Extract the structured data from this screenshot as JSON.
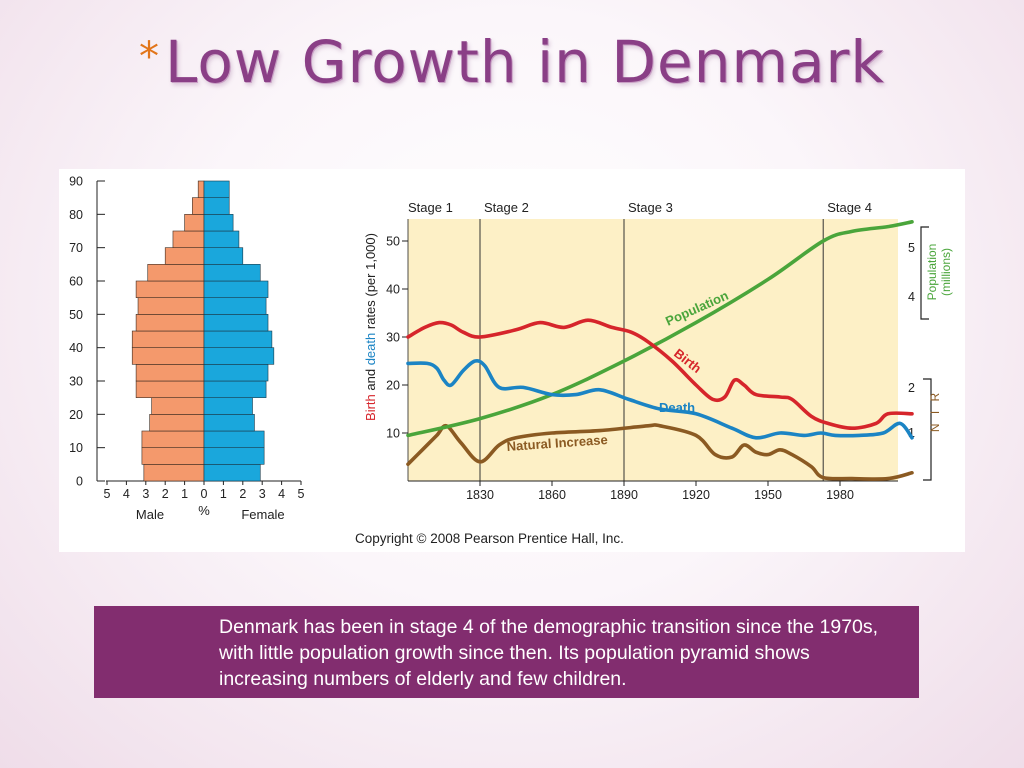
{
  "slide": {
    "title_prefix": "*",
    "title": "Low Growth in Denmark",
    "caption": "Denmark has been in stage 4 of the demographic transition since the 1970s, with little population growth since then.  Its population pyramid shows increasing numbers of elderly and few children."
  },
  "colors": {
    "male": "#f4996c",
    "female": "#1aa7dc",
    "birth": "#d6252b",
    "death": "#1b84c4",
    "population": "#4aa53b",
    "natural_increase": "#8b5a22",
    "plot_bg": "#fdf0c6",
    "caption_bg": "#822d6f",
    "title": "#8a3f86"
  },
  "chart_data": [
    {
      "type": "bar",
      "subtype": "population-pyramid",
      "xlabel": "%",
      "x_ticks": [
        "5",
        "4",
        "3",
        "2",
        "1",
        "0",
        "1",
        "2",
        "3",
        "4",
        "5"
      ],
      "y_ticks": [
        "0",
        "10",
        "20",
        "30",
        "40",
        "50",
        "60",
        "70",
        "80",
        "90"
      ],
      "xlim": [
        -5,
        5
      ],
      "ylim": [
        0,
        90
      ],
      "side_labels": {
        "male": "Male",
        "female": "Female"
      },
      "age_groups": [
        "0-4",
        "5-9",
        "10-14",
        "15-19",
        "20-24",
        "25-29",
        "30-34",
        "35-39",
        "40-44",
        "45-49",
        "50-54",
        "55-59",
        "60-64",
        "65-69",
        "70-74",
        "75-79",
        "80-84",
        "85-89"
      ],
      "series": [
        {
          "name": "Male",
          "values": [
            3.1,
            3.2,
            3.2,
            2.8,
            2.7,
            3.5,
            3.5,
            3.7,
            3.7,
            3.5,
            3.4,
            3.5,
            2.9,
            2.0,
            1.6,
            1.0,
            0.6,
            0.3
          ]
        },
        {
          "name": "Female",
          "values": [
            2.9,
            3.1,
            3.1,
            2.6,
            2.5,
            3.2,
            3.3,
            3.6,
            3.5,
            3.3,
            3.2,
            3.3,
            2.9,
            2.0,
            1.8,
            1.5,
            1.3,
            1.3
          ]
        }
      ]
    },
    {
      "type": "line",
      "ylabel_parts": [
        "Birth",
        " and ",
        "death",
        " rates (per 1,000)"
      ],
      "right_label_population": [
        "Population",
        "(millions)"
      ],
      "right_label_nir": "N I R",
      "xlim": [
        1800,
        2010
      ],
      "ylim": [
        0,
        56
      ],
      "x_ticks": [
        "1830",
        "1860",
        "1890",
        "1920",
        "1950",
        "1980"
      ],
      "y_ticks": [
        "10",
        "20",
        "30",
        "40",
        "50"
      ],
      "right_ticks_population": [
        "4",
        "5"
      ],
      "right_ticks_nir": [
        "1",
        "2"
      ],
      "stages": [
        {
          "label": "Stage 1",
          "start": 1800,
          "end": 1830
        },
        {
          "label": "Stage 2",
          "start": 1830,
          "end": 1890
        },
        {
          "label": "Stage 3",
          "start": 1890,
          "end": 1973
        },
        {
          "label": "Stage 4",
          "start": 1973,
          "end": 2010
        }
      ],
      "series": [
        {
          "name": "Population",
          "x": [
            1800,
            1830,
            1860,
            1890,
            1920,
            1950,
            1973,
            1985,
            2000,
            2010
          ],
          "y": [
            9.5,
            13,
            18,
            25,
            33,
            42,
            50,
            52,
            53,
            54
          ]
        },
        {
          "name": "Birth",
          "x": [
            1800,
            1807,
            1813,
            1818,
            1823,
            1830,
            1845,
            1855,
            1865,
            1875,
            1885,
            1893,
            1900,
            1910,
            1920,
            1927,
            1932,
            1936,
            1940,
            1945,
            1955,
            1960,
            1968,
            1975,
            1985,
            1995,
            2000,
            2010
          ],
          "y": [
            30,
            32,
            33,
            32.5,
            31,
            30,
            31.5,
            33,
            32,
            33.5,
            32,
            31,
            29,
            25,
            20,
            17,
            17.5,
            21,
            20,
            18,
            17.5,
            17,
            13.5,
            12,
            11,
            12,
            14,
            14
          ]
        },
        {
          "name": "Death",
          "x": [
            1800,
            1808,
            1812,
            1815,
            1818,
            1823,
            1828,
            1832,
            1838,
            1848,
            1860,
            1870,
            1880,
            1892,
            1905,
            1920,
            1935,
            1945,
            1955,
            1965,
            1972,
            1978,
            1988,
            1998,
            2005,
            2010
          ],
          "y": [
            24.5,
            24.5,
            23.5,
            21,
            20,
            23,
            25,
            24,
            19.5,
            19.5,
            18,
            18,
            19,
            17,
            15,
            14,
            11,
            9,
            10,
            9.5,
            10,
            9.5,
            9.5,
            10,
            12,
            9
          ]
        },
        {
          "name": "Natural Increase",
          "x": [
            1800,
            1806,
            1812,
            1816,
            1822,
            1830,
            1838,
            1845,
            1860,
            1880,
            1900,
            1905,
            1920,
            1928,
            1935,
            1940,
            1945,
            1950,
            1955,
            1960,
            1968,
            1973,
            1985,
            2000,
            2010
          ],
          "y": [
            3.5,
            6.5,
            9.5,
            11.5,
            8,
            4,
            7.5,
            9,
            10,
            10.5,
            11.5,
            11.5,
            9.5,
            5.5,
            5,
            7.5,
            6,
            5.5,
            6.5,
            5.5,
            3,
            0.7,
            0.5,
            0.5,
            1.7
          ]
        }
      ],
      "annotations": [
        "Population",
        "Birth",
        "Death",
        "Natural Increase"
      ]
    }
  ],
  "copyright": "Copyright © 2008 Pearson Prentice Hall, Inc."
}
